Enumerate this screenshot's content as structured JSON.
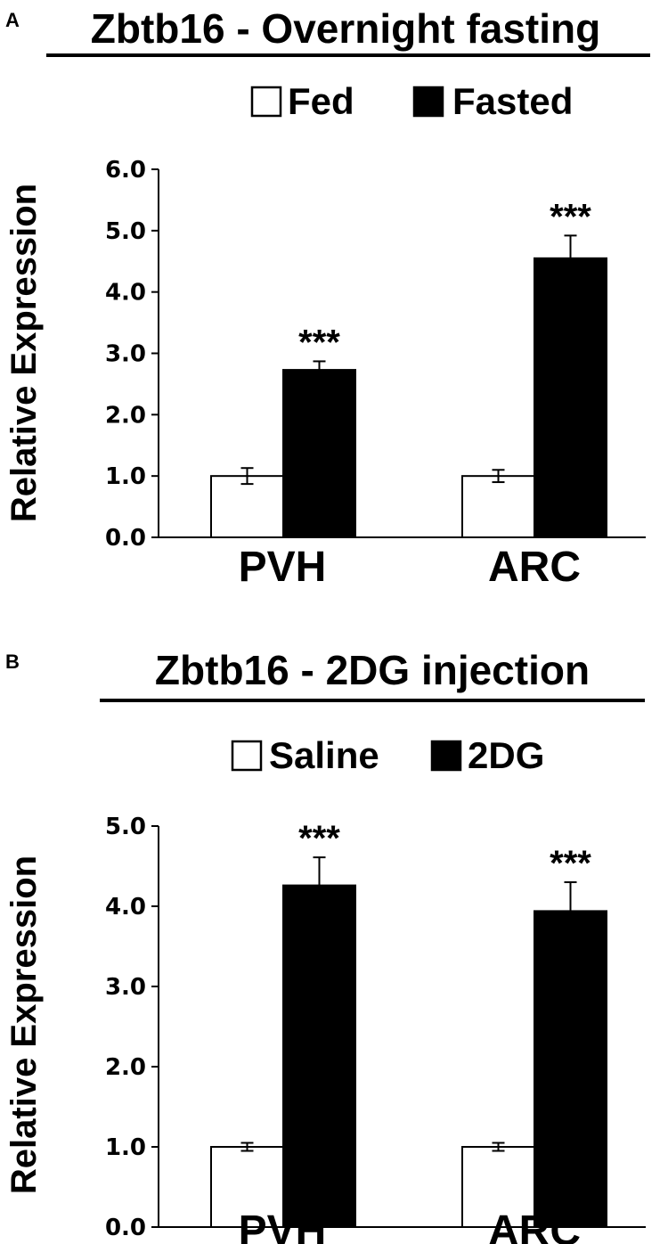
{
  "chart_data": [
    {
      "panel": "A",
      "type": "bar",
      "title": "Zbtb16 - Overnight fasting",
      "ylabel": "Relative Expression",
      "ylim": [
        0,
        6
      ],
      "yticks": [
        "0.0",
        "1.0",
        "2.0",
        "3.0",
        "4.0",
        "5.0",
        "6.0"
      ],
      "categories": [
        "PVH",
        "ARC"
      ],
      "series": [
        {
          "name": "Fed",
          "color": "#ffffff",
          "values": [
            1.0,
            1.0
          ],
          "errors": [
            0.13,
            0.1
          ]
        },
        {
          "name": "Fasted",
          "color": "#000000",
          "values": [
            2.73,
            4.55
          ],
          "errors": [
            0.14,
            0.37
          ]
        }
      ],
      "annotations": [
        {
          "series": "Fasted",
          "category": "PVH",
          "text": "***"
        },
        {
          "series": "Fasted",
          "category": "ARC",
          "text": "***"
        }
      ],
      "legend_position": "top"
    },
    {
      "panel": "B",
      "type": "bar",
      "title": "Zbtb16 - 2DG injection",
      "ylabel": "Relative Expression",
      "ylim": [
        0,
        5
      ],
      "yticks": [
        "0.0",
        "1.0",
        "2.0",
        "3.0",
        "4.0",
        "5.0"
      ],
      "categories": [
        "PVH",
        "ARC"
      ],
      "series": [
        {
          "name": "Saline",
          "color": "#ffffff",
          "values": [
            1.0,
            1.0
          ],
          "errors": [
            0.05,
            0.05
          ]
        },
        {
          "name": "2DG",
          "color": "#000000",
          "values": [
            4.26,
            3.94
          ],
          "errors": [
            0.35,
            0.36
          ]
        }
      ],
      "annotations": [
        {
          "series": "2DG",
          "category": "PVH",
          "text": "***"
        },
        {
          "series": "2DG",
          "category": "ARC",
          "text": "***"
        }
      ],
      "legend_position": "top"
    }
  ]
}
